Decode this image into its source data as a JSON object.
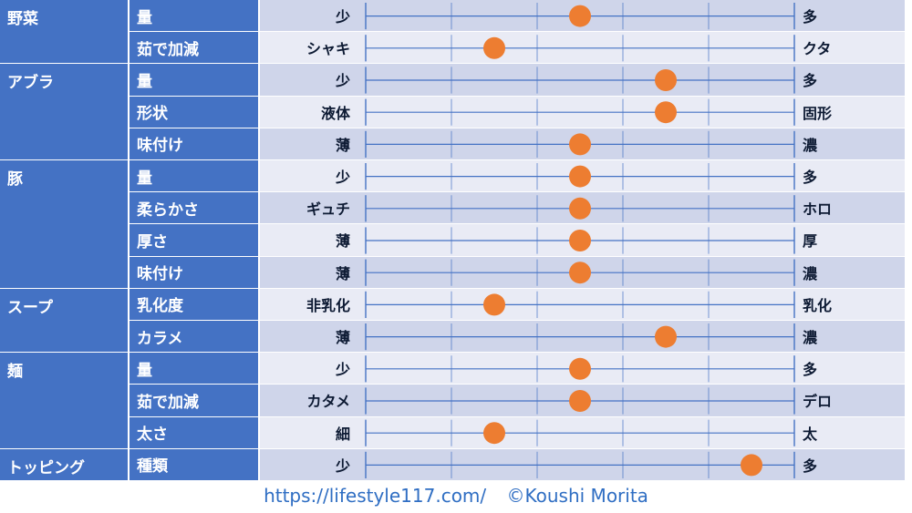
{
  "chart_data": {
    "type": "scatter",
    "scale": {
      "min": 0,
      "max": 5,
      "ticks": [
        0,
        1,
        2,
        3,
        4,
        5
      ]
    },
    "colors": {
      "header": "#4472c4",
      "row_even": "#cfd5ea",
      "row_odd": "#e9ebf5",
      "line": "#4472c4",
      "dot": "#ed7d31"
    },
    "groups": [
      {
        "category": "野菜",
        "rows": [
          {
            "attribute": "量",
            "low": "少",
            "high": "多",
            "value": 2.5
          },
          {
            "attribute": "茹で加減",
            "low": "シャキ",
            "high": "クタ",
            "value": 1.5
          }
        ]
      },
      {
        "category": "アブラ",
        "rows": [
          {
            "attribute": "量",
            "low": "少",
            "high": "多",
            "value": 3.5
          },
          {
            "attribute": "形状",
            "low": "液体",
            "high": "固形",
            "value": 3.5
          },
          {
            "attribute": "味付け",
            "low": "薄",
            "high": "濃",
            "value": 2.5
          }
        ]
      },
      {
        "category": "豚",
        "rows": [
          {
            "attribute": "量",
            "low": "少",
            "high": "多",
            "value": 2.5
          },
          {
            "attribute": "柔らかさ",
            "low": "ギュチ",
            "high": "ホロ",
            "value": 2.5
          },
          {
            "attribute": "厚さ",
            "low": "薄",
            "high": "厚",
            "value": 2.5
          },
          {
            "attribute": "味付け",
            "low": "薄",
            "high": "濃",
            "value": 2.5
          }
        ]
      },
      {
        "category": "スープ",
        "rows": [
          {
            "attribute": "乳化度",
            "low": "非乳化",
            "high": "乳化",
            "value": 1.5
          },
          {
            "attribute": "カラメ",
            "low": "薄",
            "high": "濃",
            "value": 3.5
          }
        ]
      },
      {
        "category": "麺",
        "rows": [
          {
            "attribute": "量",
            "low": "少",
            "high": "多",
            "value": 2.5
          },
          {
            "attribute": "茹で加減",
            "low": "カタメ",
            "high": "デロ",
            "value": 2.5
          },
          {
            "attribute": "太さ",
            "low": "細",
            "high": "太",
            "value": 1.5
          }
        ]
      },
      {
        "category": "トッピング",
        "rows": [
          {
            "attribute": "種類",
            "low": "少",
            "high": "多",
            "value": 4.5
          }
        ]
      }
    ]
  },
  "footer": {
    "url": "https://lifestyle117.com/",
    "credit": "©Koushi Morita"
  }
}
